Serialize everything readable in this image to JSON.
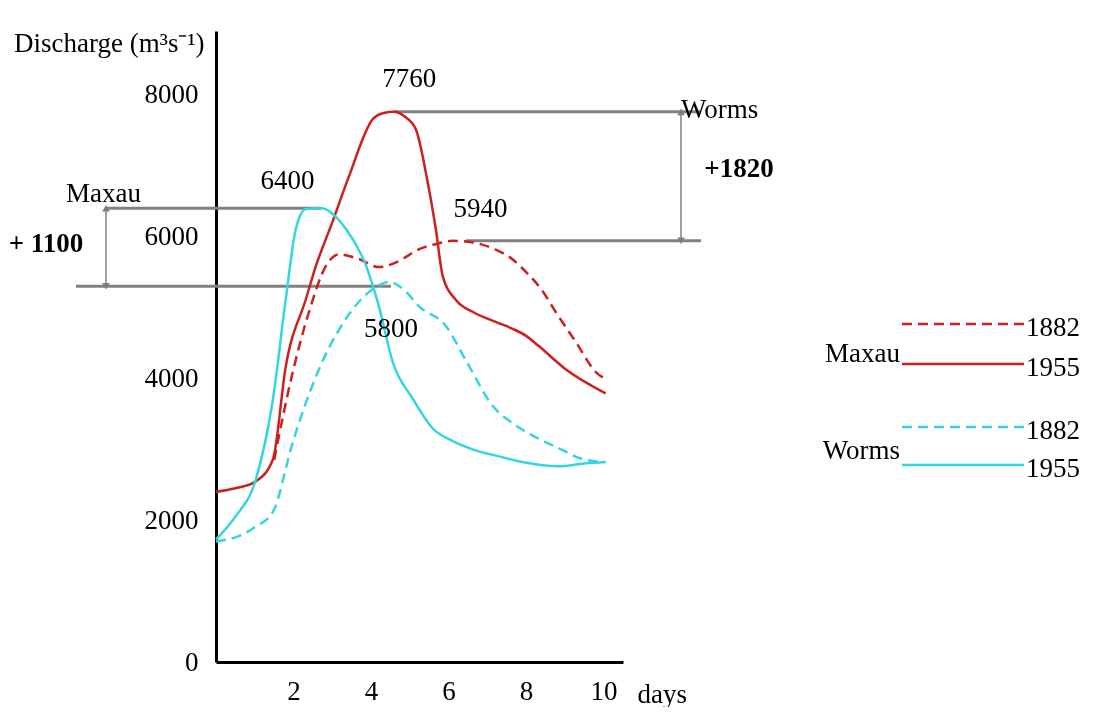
{
  "chart_data": {
    "type": "line",
    "xlabel": "days",
    "ylabel": "Discharge (m³s⁻¹)",
    "xlim": [
      0,
      10.5
    ],
    "xticks": [
      2,
      4,
      6,
      8,
      10
    ],
    "ylim": [
      0,
      8900
    ],
    "yticks": [
      0,
      2000,
      4000,
      6000,
      8000
    ],
    "grid": false,
    "legend": "right",
    "marker": "none",
    "series": [
      {
        "name": "1882",
        "color": "#cc1f1f",
        "line_style": "dashed",
        "x": [
          1.5,
          1.98,
          2.4,
          2.84,
          3.17,
          3.7,
          4.2,
          4.7,
          5.23,
          5.7,
          6.1,
          6.6,
          7.2,
          7.6,
          8.0,
          8.4,
          8.76,
          9.3,
          9.8,
          10.05
        ],
        "values": [
          2850,
          4090,
          4940,
          5590,
          5750,
          5680,
          5570,
          5650,
          5820,
          5900,
          5940,
          5920,
          5820,
          5700,
          5500,
          5250,
          4940,
          4500,
          4090,
          3990
        ]
      },
      {
        "name": "1955",
        "color": "#cc1f1f",
        "line_style": "solid",
        "x": [
          0,
          0.5,
          1.03,
          1.47,
          1.8,
          2.32,
          2.58,
          3.0,
          3.43,
          4.05,
          4.3,
          4.6,
          4.85,
          5.15,
          5.45,
          5.67,
          5.85,
          6.2,
          6.62,
          7.2,
          7.65,
          8.0,
          8.32,
          9.02,
          10.05
        ],
        "values": [
          2400,
          2450,
          2550,
          2860,
          4170,
          5120,
          5590,
          6200,
          6850,
          7660,
          7740,
          7760,
          7700,
          7520,
          6800,
          6110,
          5440,
          5100,
          4940,
          4800,
          4700,
          4600,
          4460,
          4130,
          3790
        ]
      },
      {
        "name": "1882",
        "color": "#33d6e0",
        "line_style": "dashed",
        "x": [
          0,
          0.6,
          1.0,
          1.47,
          1.98,
          2.58,
          3.35,
          4.05,
          4.47,
          4.85,
          5.23,
          5.93,
          6.5,
          7.14,
          7.7,
          8.32,
          8.9,
          9.46,
          10.05
        ],
        "values": [
          1700,
          1780,
          1900,
          2120,
          3100,
          4030,
          4840,
          5260,
          5360,
          5250,
          5020,
          4740,
          4200,
          3610,
          3350,
          3150,
          3000,
          2860,
          2820
        ]
      },
      {
        "name": "1955",
        "color": "#33d6e0",
        "line_style": "solid",
        "x": [
          0,
          0.5,
          1.03,
          1.47,
          1.8,
          2.06,
          2.32,
          2.75,
          3.05,
          3.35,
          3.87,
          4.2,
          4.56,
          5.08,
          5.6,
          6.1,
          6.62,
          7.3,
          7.9,
          8.84,
          9.5,
          10.05
        ],
        "values": [
          1730,
          2050,
          2580,
          3710,
          5120,
          6110,
          6390,
          6400,
          6300,
          6110,
          5590,
          5020,
          4230,
          3710,
          3290,
          3120,
          3000,
          2900,
          2820,
          2760,
          2800,
          2820
        ]
      }
    ],
    "ref_lines": [
      {
        "axis": "y",
        "value": 7760,
        "label": "Worms",
        "color": "#808080"
      },
      {
        "axis": "y",
        "value": 5940,
        "color": "#808080"
      },
      {
        "axis": "y",
        "value": 6400,
        "label": "Maxau",
        "color": "#808080"
      },
      {
        "axis": "y",
        "value": 5300,
        "color": "#808080"
      }
    ],
    "annotations": [
      {
        "text": "7760",
        "x": 4.6,
        "y": 7760
      },
      {
        "text": "6400",
        "x": 2.75,
        "y": 6400
      },
      {
        "text": "5940",
        "x": 6.1,
        "y": 5940
      },
      "5800",
      "+1820",
      "+ 1100",
      "Maxau",
      "Worms"
    ]
  }
}
